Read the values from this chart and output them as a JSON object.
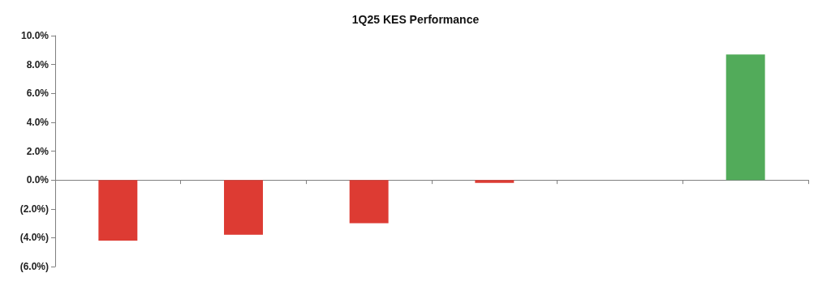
{
  "chart_data": {
    "type": "bar",
    "title": "1Q25 KES Performance",
    "categories": [
      null,
      null,
      null,
      null,
      null,
      null
    ],
    "values": [
      -4.2,
      -3.8,
      -3.0,
      -0.2,
      0,
      8.7
    ],
    "colors": [
      "#dd3b33",
      "#dd3b33",
      "#dd3b33",
      "#dd3b33",
      "#dd3b33",
      "#52ab5a"
    ],
    "ylim": [
      -6,
      10
    ],
    "yticks": [
      {
        "value": -6,
        "label": "(6.0%)"
      },
      {
        "value": -4,
        "label": "(4.0%)"
      },
      {
        "value": -2,
        "label": "(2.0%)"
      },
      {
        "value": 0,
        "label": "0.0%"
      },
      {
        "value": 2,
        "label": "2.0%"
      },
      {
        "value": 4,
        "label": "4.0%"
      },
      {
        "value": 6,
        "label": "6.0%"
      },
      {
        "value": 8,
        "label": "8.0%"
      },
      {
        "value": 10,
        "label": "10.0%"
      }
    ],
    "tick_labels": "y"
  }
}
